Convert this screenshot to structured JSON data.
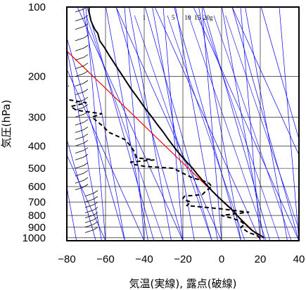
{
  "chart_data": {
    "type": "line",
    "title": "",
    "xlabel": "気温(実線), 露点(破線)",
    "ylabel": "気圧(hPa)",
    "xlim": [
      -80,
      40
    ],
    "ylim": [
      1030,
      100
    ],
    "y_scale": "log",
    "grid": true,
    "x_ticks": [
      -80,
      -60,
      -40,
      -20,
      0,
      20,
      40
    ],
    "y_ticks": [
      100,
      200,
      300,
      400,
      500,
      600,
      700,
      800,
      900,
      1000
    ],
    "mixing_ratio_labels": [
      "1",
      "5",
      "10",
      "15",
      "20g"
    ],
    "colors": {
      "temperature": "#000000",
      "dewpoint": "#000000",
      "reference_line": "#ff0000",
      "background_lines": "#0000ff",
      "grid": "#000000"
    },
    "series": [
      {
        "style": "solid",
        "p": [
          1000,
          975,
          950,
          925,
          900,
          875,
          850,
          825,
          800,
          775,
          750,
          725,
          700,
          675,
          650,
          625,
          600,
          575,
          550,
          525,
          500,
          475,
          450,
          425,
          400,
          375,
          350,
          325,
          300,
          275,
          250,
          225,
          200,
          175,
          160,
          150,
          140,
          130,
          125,
          120,
          115,
          110,
          105,
          100
        ],
        "values": [
          22,
          20,
          17.5,
          15.5,
          14,
          12.5,
          11,
          9.5,
          8,
          6.5,
          5,
          3,
          1,
          -1,
          -3,
          -5,
          -7,
          -9,
          -11,
          -13,
          -15,
          -17.5,
          -20,
          -22.5,
          -25,
          -27.5,
          -30,
          -33,
          -36,
          -39.5,
          -43,
          -47,
          -51,
          -55.5,
          -58.5,
          -60.5,
          -63,
          -64,
          -65.5,
          -66.5,
          -67.5,
          -68,
          -68.5,
          -68.5
        ]
      },
      {
        "style": "dashed",
        "p": [
          1000,
          975,
          950,
          925,
          900,
          875,
          850,
          825,
          800,
          775,
          750,
          725,
          700,
          690,
          675,
          660,
          650,
          625,
          600,
          575,
          550,
          525,
          500,
          490,
          480,
          470,
          460,
          450,
          425,
          400,
          375,
          350,
          325,
          300,
          290,
          280,
          270,
          260,
          250,
          240,
          230,
          220
        ],
        "values": [
          20,
          18,
          14,
          12,
          10,
          12,
          10,
          6,
          0,
          14,
          0,
          -18,
          -16,
          -18,
          -20,
          -19,
          -10,
          -8,
          -5,
          -7,
          -15,
          -20,
          -25,
          -40,
          -46,
          -47,
          -35,
          -44,
          -45,
          -47,
          -50,
          -58,
          -62,
          -67,
          -62,
          -75,
          -78,
          -70,
          -82,
          -80,
          -86,
          -79
        ]
      }
    ]
  }
}
